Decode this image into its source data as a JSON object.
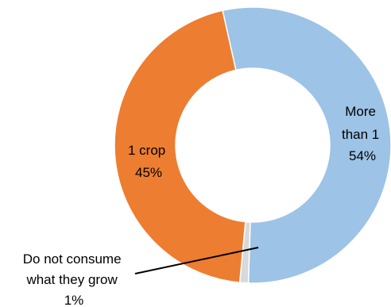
{
  "chart_data": {
    "type": "donut",
    "title": "",
    "slices": [
      {
        "label_lines": [
          "More",
          "than 1"
        ],
        "value": 54,
        "value_label": "54%",
        "color": "#9DC3E6"
      },
      {
        "label_lines": [
          "Do not consume",
          "what they grow"
        ],
        "value": 1,
        "value_label": "1%",
        "color": "#D9D9D9"
      },
      {
        "label_lines": [
          "1 crop"
        ],
        "value": 45,
        "value_label": "45%",
        "color": "#ED7D31"
      }
    ],
    "legend": "none"
  }
}
